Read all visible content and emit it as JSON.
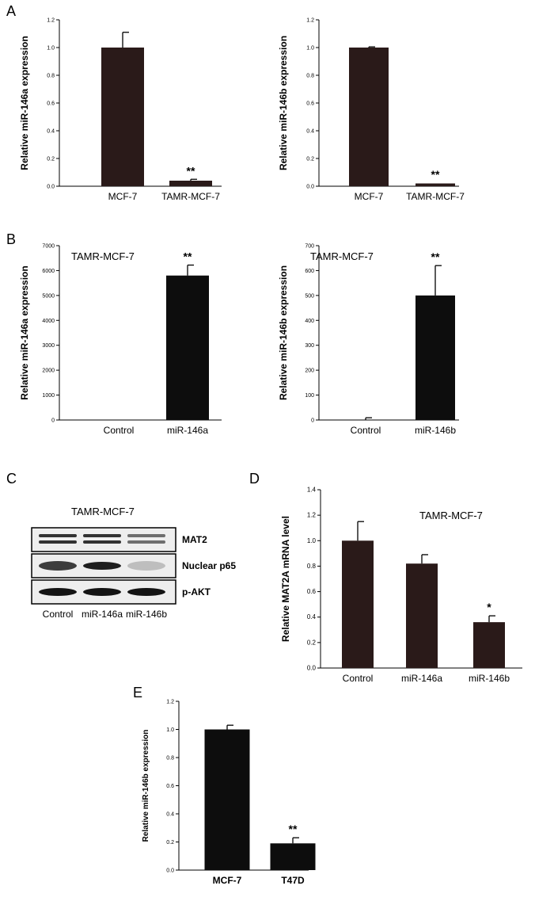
{
  "panels": {
    "A": "A",
    "B": "B",
    "C": "C",
    "D": "D",
    "E": "E"
  },
  "colors": {
    "bar_dark_brown": "#2a1a19",
    "bar_black": "#0d0d0d",
    "axis": "#000000"
  },
  "chart_data": [
    {
      "id": "A1",
      "type": "bar",
      "title": "",
      "ylabel": "Relative miR-146a expression",
      "categories": [
        "MCF-7",
        "TAMR-MCF-7"
      ],
      "values": [
        1.0,
        0.04
      ],
      "errors": [
        0.11,
        0.01
      ],
      "significance": [
        "",
        "**"
      ],
      "ylim": [
        0,
        1.2
      ],
      "yticks": [
        "0.0",
        "0.2",
        "0.4",
        "0.6",
        "0.8",
        "1.0",
        "1.2"
      ],
      "color": "#2a1a19"
    },
    {
      "id": "A2",
      "type": "bar",
      "title": "",
      "ylabel": "Relative miR-146b expression",
      "categories": [
        "MCF-7",
        "TAMR-MCF-7"
      ],
      "values": [
        1.0,
        0.02
      ],
      "errors": [
        0.005,
        0.003
      ],
      "significance": [
        "",
        "**"
      ],
      "ylim": [
        0,
        1.2
      ],
      "yticks": [
        "0.0",
        "0.2",
        "0.4",
        "0.6",
        "0.8",
        "1.0",
        "1.2"
      ],
      "color": "#2a1a19"
    },
    {
      "id": "B1",
      "type": "bar",
      "title": "TAMR-MCF-7",
      "ylabel": "Relative miR-146a expression",
      "categories": [
        "Control",
        "miR-146a"
      ],
      "values": [
        1,
        5800
      ],
      "errors": [
        0,
        420
      ],
      "significance": [
        "",
        "**"
      ],
      "ylim": [
        0,
        7000
      ],
      "yticks": [
        "0",
        "1000",
        "2000",
        "3000",
        "4000",
        "5000",
        "6000",
        "7000"
      ],
      "color": "#0d0d0d"
    },
    {
      "id": "B2",
      "type": "bar",
      "title": "TAMR-MCF-7",
      "ylabel": "Relative miR-146b expression",
      "categories": [
        "Control",
        "miR-146b"
      ],
      "values": [
        1,
        500
      ],
      "errors": [
        8,
        120
      ],
      "significance": [
        "",
        "**"
      ],
      "ylim": [
        0,
        700
      ],
      "yticks": [
        "0",
        "100",
        "200",
        "300",
        "400",
        "500",
        "600",
        "700"
      ],
      "color": "#0d0d0d"
    },
    {
      "id": "D",
      "type": "bar",
      "title": "TAMR-MCF-7",
      "ylabel": "Relative MAT2A mRNA level",
      "categories": [
        "Control",
        "miR-146a",
        "miR-146b"
      ],
      "values": [
        1.0,
        0.82,
        0.36
      ],
      "errors": [
        0.15,
        0.07,
        0.05
      ],
      "significance": [
        "",
        "",
        "*"
      ],
      "ylim": [
        0,
        1.4
      ],
      "yticks": [
        "0.0",
        "0.2",
        "0.4",
        "0.6",
        "0.8",
        "1.0",
        "1.2",
        "1.4"
      ],
      "color": "#2a1a19"
    },
    {
      "id": "E",
      "type": "bar",
      "title": "",
      "ylabel": "Relative miR-146b expression",
      "categories": [
        "MCF-7",
        "T47D"
      ],
      "values": [
        1.0,
        0.19
      ],
      "errors": [
        0.03,
        0.04
      ],
      "significance": [
        "",
        "**"
      ],
      "ylim": [
        0,
        1.2
      ],
      "yticks": [
        "0.0",
        "0.2",
        "0.4",
        "0.6",
        "0.8",
        "1.0",
        "1.2"
      ],
      "color": "#0d0d0d",
      "bold_categories": true
    }
  ],
  "western_blot": {
    "title": "TAMR-MCF-7",
    "lanes": [
      "Control",
      "miR-146a",
      "miR-146b"
    ],
    "rows": [
      {
        "label": "MAT2",
        "intensity": [
          0.85,
          0.85,
          0.55
        ]
      },
      {
        "label": "Nuclear p65",
        "intensity": [
          0.8,
          0.95,
          0.15
        ]
      },
      {
        "label": "p-AKT",
        "intensity": [
          1.0,
          1.0,
          1.0
        ]
      }
    ]
  }
}
